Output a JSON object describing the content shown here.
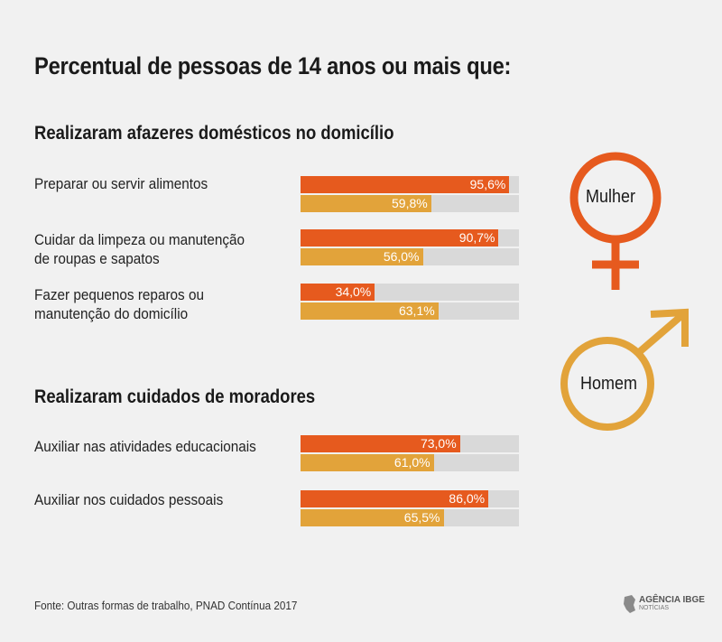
{
  "title": "Percentual de pessoas de 14 anos ou mais que:",
  "colors": {
    "mulher": "#e65a1e",
    "homem": "#e2a33a",
    "track": "#d9d9d9"
  },
  "chart_data": {
    "type": "bar",
    "orientation": "horizontal",
    "xlim": [
      0,
      100
    ],
    "unit": "%",
    "groups": [
      {
        "title": "Realizaram afazeres domésticos no domicílio",
        "items": [
          {
            "label_lines": [
              "Preparar ou servir alimentos"
            ],
            "mulher": 95.6,
            "homem": 59.8,
            "mulher_label": "95,6%",
            "homem_label": "59,8%"
          },
          {
            "label_lines": [
              "Cuidar da limpeza ou manutenção",
              "de roupas e sapatos"
            ],
            "mulher": 90.7,
            "homem": 56.0,
            "mulher_label": "90,7%",
            "homem_label": "56,0%"
          },
          {
            "label_lines": [
              "Fazer pequenos reparos ou",
              "manutenção do domicílio"
            ],
            "mulher": 34.0,
            "homem": 63.1,
            "mulher_label": "34,0%",
            "homem_label": "63,1%"
          }
        ]
      },
      {
        "title": "Realizaram cuidados de moradores",
        "items": [
          {
            "label_lines": [
              "Auxiliar nas atividades educacionais"
            ],
            "mulher": 73.0,
            "homem": 61.0,
            "mulher_label": "73,0%",
            "homem_label": "61,0%"
          },
          {
            "label_lines": [
              "Auxiliar nos cuidados pessoais"
            ],
            "mulher": 86.0,
            "homem": 65.5,
            "mulher_label": "86,0%",
            "homem_label": "65,5%"
          }
        ]
      }
    ],
    "legend": [
      {
        "key": "mulher",
        "label": "Mulher",
        "icon": "female-symbol-icon"
      },
      {
        "key": "homem",
        "label": "Homem",
        "icon": "male-symbol-icon"
      }
    ]
  },
  "source": "Fonte: Outras formas de trabalho, PNAD Contínua 2017",
  "logo": {
    "brand": "AGÊNCIA IBGE",
    "sub": "NOTÍCIAS"
  }
}
